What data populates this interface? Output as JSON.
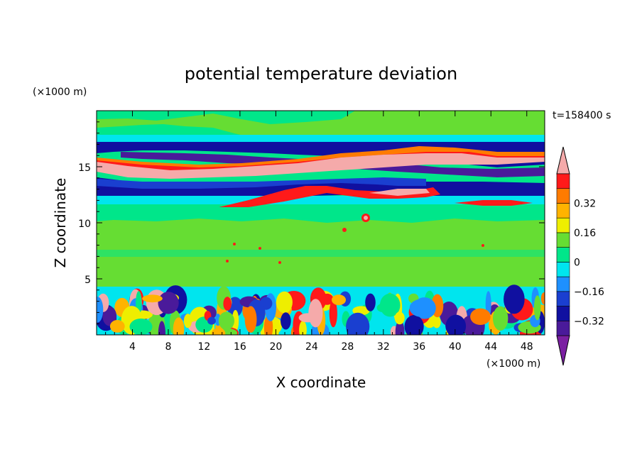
{
  "chart_data": {
    "type": "heatmap",
    "title": "potential temperature deviation",
    "xlabel": "X coordinate",
    "ylabel": "Z coordinate",
    "x_unit": "(×1000 m)",
    "y_unit": "(×1000 m)",
    "time_label": "t=158400 s",
    "xlim": [
      0,
      50
    ],
    "ylim": [
      0,
      20
    ],
    "x_ticks": [
      4,
      8,
      12,
      16,
      20,
      24,
      28,
      32,
      36,
      40,
      44,
      48
    ],
    "y_ticks": [
      5,
      10,
      15
    ],
    "x_tick_labels": [
      "4",
      "8",
      "12",
      "16",
      "20",
      "24",
      "28",
      "32",
      "36",
      "40",
      "44",
      "48"
    ],
    "y_tick_labels": [
      "5",
      "10",
      "15"
    ],
    "colorbar": {
      "levels": [
        -0.48,
        -0.4,
        -0.32,
        -0.24,
        -0.16,
        -0.08,
        0,
        0.08,
        0.16,
        0.24,
        0.32,
        0.4,
        0.48
      ],
      "colors": [
        "#7b1fa2",
        "#4a1a9a",
        "#1010a0",
        "#1a3fd0",
        "#1e90ff",
        "#00e5ee",
        "#00e68a",
        "#66dd33",
        "#eeee00",
        "#ffb300",
        "#ff7b00",
        "#ff1a1a",
        "#f5aaaa"
      ],
      "tick_values": [
        -0.32,
        -0.16,
        0,
        0.16,
        0.32
      ],
      "tick_labels": [
        "−0.32",
        "−0.16",
        "0",
        "0.16",
        "0.32"
      ]
    }
  }
}
